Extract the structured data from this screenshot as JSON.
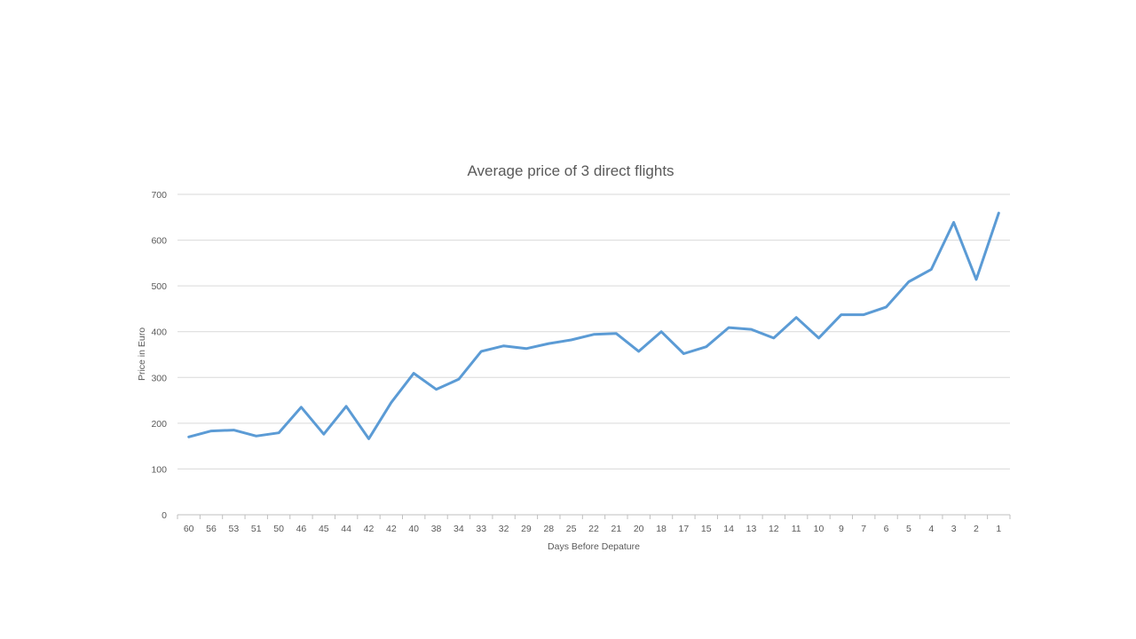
{
  "chart_data": {
    "type": "line",
    "title": "Average price of 3 direct flights",
    "xlabel": "Days Before Depature",
    "ylabel": "Price in Euro",
    "ylim": [
      0,
      700
    ],
    "yticks": [
      "0",
      "100",
      "200",
      "300",
      "400",
      "500",
      "600",
      "700"
    ],
    "grid": true,
    "legend": "none",
    "categories": [
      "60",
      "56",
      "53",
      "51",
      "50",
      "46",
      "45",
      "44",
      "42",
      "42",
      "40",
      "38",
      "34",
      "33",
      "32",
      "29",
      "28",
      "25",
      "22",
      "21",
      "20",
      "18",
      "17",
      "15",
      "14",
      "13",
      "12",
      "11",
      "10",
      "9",
      "7",
      "6",
      "5",
      "4",
      "3",
      "2",
      "1"
    ],
    "series": [
      {
        "color": "#5b9bd5",
        "values": [
          170,
          183,
          185,
          172,
          179,
          235,
          176,
          237,
          166,
          245,
          309,
          274,
          296,
          357,
          369,
          363,
          374,
          382,
          394,
          396,
          357,
          400,
          352,
          367,
          409,
          405,
          386,
          431,
          386,
          437,
          437,
          454,
          509,
          536,
          639,
          514,
          659
        ]
      }
    ]
  }
}
